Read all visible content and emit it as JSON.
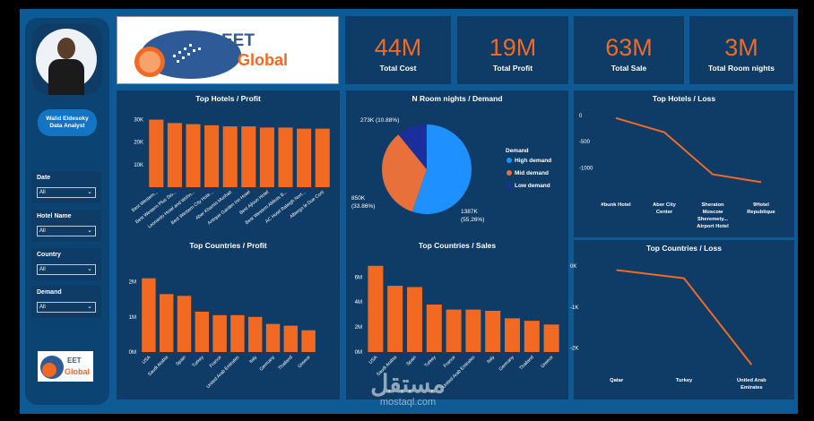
{
  "profile": {
    "name": "Walid Eldesoky",
    "role": "Data Analyst"
  },
  "slicers": [
    {
      "label": "Date",
      "value": "All"
    },
    {
      "label": "Hotel Name",
      "value": "All"
    },
    {
      "label": "Country",
      "value": "All"
    },
    {
      "label": "Demand",
      "value": "All"
    }
  ],
  "logo": {
    "part1": "EET",
    "part2": "Global"
  },
  "kpis": [
    {
      "value": "44M",
      "label": "Total Cost"
    },
    {
      "value": "19M",
      "label": "Total Profit"
    },
    {
      "value": "63M",
      "label": "Total Sale"
    },
    {
      "value": "3M",
      "label": "Total Room nights"
    }
  ],
  "colors": {
    "bar": "#f26a22",
    "high": "#1e90ff",
    "mid": "#e8703a",
    "low": "#1a2f9c",
    "panel": "#0f3c66",
    "frame": "#0d5a94"
  },
  "watermark": {
    "arabic": "مستقل",
    "latin": "mostaql.com"
  },
  "chart_data": [
    {
      "id": "hotels-profit",
      "type": "bar",
      "title": "Top Hotels / Profit",
      "categories": [
        "Best Western...",
        "Best Western Plus Sto...",
        "Leonardo Hotel and Wohn...",
        "Best Western City Hote...",
        "Aber Khamis Mushait",
        "Antique Garden Inn Hotel",
        "Best Ajloun Hotel",
        "Best Western Abbots B...",
        "AC Hotel Raleigh Nort...",
        "Albergo le Due Corti"
      ],
      "values": [
        30000,
        28500,
        28000,
        27500,
        27000,
        27000,
        26500,
        26500,
        26000,
        26000
      ],
      "ylim": [
        0,
        35000
      ],
      "yticks": [
        0,
        10000,
        20000,
        30000
      ],
      "ytick_labels": [
        "",
        "10K",
        "20K",
        "30K"
      ]
    },
    {
      "id": "room-demand",
      "type": "pie",
      "title": "N Room nights / Demand",
      "legend_title": "Demand",
      "slices": [
        {
          "name": "High demand",
          "value": 1387,
          "label": "1387K\n(55.26%)"
        },
        {
          "name": "Mid demand",
          "value": 850,
          "label": "850K\n(33.86%)"
        },
        {
          "name": "Low demand",
          "value": 273,
          "label": "273K (10.88%)"
        }
      ]
    },
    {
      "id": "hotels-loss",
      "type": "line",
      "title": "Top Hotels / Loss",
      "categories": [
        "#bunk Hotel",
        "Aber City Center",
        "Sheraton Moscow Sheremety... Airport Hotel",
        "9Hotel Republique"
      ],
      "values": [
        -50,
        -320,
        -1120,
        -1270
      ],
      "ylim": [
        -1400,
        100
      ],
      "yticks": [
        0,
        -500,
        -1000
      ],
      "ytick_labels": [
        "0",
        "-500",
        "-1000"
      ]
    },
    {
      "id": "countries-profit",
      "type": "bar",
      "title": "Top Countries / Profit",
      "categories": [
        "USA",
        "Saudi Arabia",
        "Spain",
        "Turkey",
        "France",
        "United Arab Emirates",
        "Italy",
        "Germany",
        "Thailand",
        "Greece"
      ],
      "values": [
        2100000,
        1650000,
        1600000,
        1150000,
        1050000,
        1050000,
        1000000,
        800000,
        750000,
        620000
      ],
      "ylim": [
        0,
        2500000
      ],
      "yticks": [
        0,
        1000000,
        2000000
      ],
      "ytick_labels": [
        "0M",
        "1M",
        "2M"
      ]
    },
    {
      "id": "countries-sales",
      "type": "bar",
      "title": "Top Countries / Sales",
      "categories": [
        "USA",
        "Saudi Arabia",
        "Spain",
        "Turkey",
        "France",
        "United Arab Emirates",
        "Italy",
        "Germany",
        "Thailand",
        "Greece"
      ],
      "values": [
        6900000,
        5300000,
        5200000,
        3800000,
        3400000,
        3400000,
        3300000,
        2700000,
        2500000,
        2200000
      ],
      "ylim": [
        0,
        7600000
      ],
      "yticks": [
        0,
        2000000,
        4000000,
        6000000
      ],
      "ytick_labels": [
        "0M",
        "2M",
        "4M",
        "6M"
      ]
    },
    {
      "id": "countries-loss",
      "type": "line",
      "title": "Top Countries / Loss",
      "categories": [
        "Qatar",
        "Turkey",
        "United Arab Emirates"
      ],
      "values": [
        -100,
        -300,
        -2400
      ],
      "ylim": [
        -2550,
        150
      ],
      "yticks": [
        0,
        -1000,
        -2000
      ],
      "ytick_labels": [
        "0K",
        "-1K",
        "-2K"
      ]
    }
  ]
}
